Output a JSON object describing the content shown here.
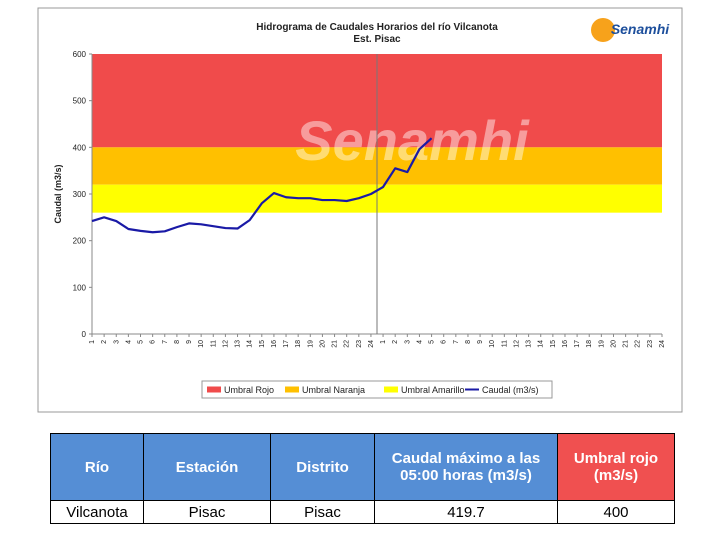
{
  "chart_data": {
    "type": "line",
    "title": "Hidrograma de Caudales Horarios del río Vilcanota",
    "subtitle": "Est. Pisac",
    "y_label": "Caudal (m3/s)",
    "watermark": "Senamhi",
    "logo": "Senamhi",
    "categories": [
      "1",
      "2",
      "3",
      "4",
      "5",
      "6",
      "7",
      "8",
      "9",
      "10",
      "11",
      "12",
      "13",
      "14",
      "15",
      "16",
      "17",
      "18",
      "19",
      "20",
      "21",
      "22",
      "23",
      "24",
      "1",
      "2",
      "3",
      "4",
      "5",
      "6",
      "7",
      "8",
      "9",
      "10",
      "11",
      "12",
      "13",
      "14",
      "15",
      "16",
      "17",
      "18",
      "19",
      "20",
      "21",
      "22",
      "23",
      "24"
    ],
    "ylim": [
      0,
      600
    ],
    "yticks": [
      0,
      100,
      200,
      300,
      400,
      500,
      600
    ],
    "bands": [
      {
        "name": "Umbral Rojo",
        "color": "#f04b4b",
        "range": [
          400,
          600
        ]
      },
      {
        "name": "Umbral Naranja",
        "color": "#ffc000",
        "range": [
          320,
          400
        ]
      },
      {
        "name": "Umbral Amarillo",
        "color": "#ffff00",
        "range": [
          260,
          320
        ]
      }
    ],
    "series": [
      {
        "name": "Caudal (m3/s)",
        "color": "#1a1aa6",
        "values": [
          242,
          250,
          242,
          225,
          221,
          218,
          220,
          229,
          237,
          235,
          231,
          227,
          226,
          244,
          280,
          302,
          293,
          291,
          291,
          287,
          287,
          285,
          291,
          300,
          315,
          355,
          347,
          396,
          419.7,
          null,
          null,
          null,
          null,
          null,
          null,
          null,
          null,
          null,
          null,
          null,
          null,
          null,
          null,
          null,
          null,
          null,
          null,
          null
        ]
      }
    ]
  },
  "table": {
    "header": [
      "Río",
      "Estación",
      "Distrito",
      "Caudal máximo a las 05:00 horas (m3/s)",
      "Umbral rojo (m3/s)"
    ],
    "rows": [
      [
        "Vilcanota",
        "Pisac",
        "Pisac",
        419.7,
        400
      ]
    ]
  }
}
